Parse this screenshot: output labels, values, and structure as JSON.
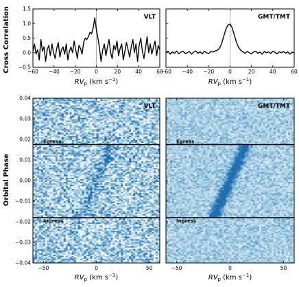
{
  "chart_data": [
    {
      "type": "line",
      "id": "cc_vlt",
      "label": "VLT",
      "ylabel": "Cross Correlation",
      "xlabel": "RV_p (km s^-1)",
      "xlim": [
        -60,
        60
      ],
      "ylim": [
        -0.5,
        1.5
      ],
      "xticks": [
        -60,
        -40,
        -20,
        0,
        20,
        40,
        60
      ],
      "yticks": [
        -0.5,
        0.0,
        0.5,
        1.0,
        1.5
      ],
      "ytick_labels": [
        "-0.5",
        "0.0",
        "0.5",
        "1.0",
        "1.5"
      ],
      "vline": 0,
      "x": [
        -60,
        -58.5,
        -57,
        -55.5,
        -54,
        -52.5,
        -51,
        -49.5,
        -48,
        -46.5,
        -45,
        -43.5,
        -42,
        -40.5,
        -39,
        -37.5,
        -36,
        -34.5,
        -33,
        -31.5,
        -30,
        -28.5,
        -27,
        -25.5,
        -24,
        -22.5,
        -21,
        -19.5,
        -18,
        -16.5,
        -15,
        -13.5,
        -12,
        -10.5,
        -9,
        -7.5,
        -6,
        -4.5,
        -3,
        -1.5,
        0,
        1.5,
        3,
        4.5,
        6,
        7.5,
        9,
        10.5,
        12,
        13.5,
        15,
        16.5,
        18,
        19.5,
        21,
        22.5,
        24,
        25.5,
        27,
        28.5,
        30,
        31.5,
        33,
        34.5,
        36,
        37.5,
        39,
        40.5,
        42,
        43.5,
        45,
        46.5,
        48,
        49.5,
        51,
        52.5,
        54,
        55.5,
        57,
        58.5,
        60
      ],
      "y": [
        0.05,
        0.3,
        -0.05,
        0.1,
        -0.25,
        0.45,
        0.05,
        0.2,
        -0.3,
        0.1,
        0.25,
        -0.1,
        0.3,
        0.0,
        -0.2,
        0.15,
        0.35,
        -0.15,
        0.1,
        0.2,
        -0.05,
        0.3,
        -0.25,
        0.05,
        0.2,
        0.0,
        0.4,
        0.1,
        -0.2,
        0.25,
        0.15,
        -0.05,
        0.35,
        0.5,
        0.45,
        0.55,
        0.7,
        0.65,
        0.85,
        1.2,
        0.8,
        0.5,
        0.15,
        -0.3,
        0.1,
        0.3,
        -0.1,
        0.2,
        0.45,
        0.0,
        -0.2,
        0.25,
        0.1,
        0.4,
        -0.1,
        0.15,
        0.3,
        -0.25,
        0.05,
        0.35,
        0.1,
        -0.15,
        0.2,
        0.45,
        0.0,
        0.3,
        -0.3,
        0.25,
        0.5,
        0.05,
        -0.2,
        0.15,
        0.55,
        0.0,
        0.3,
        -0.05,
        0.2,
        0.4,
        -0.1,
        0.25,
        0.1
      ]
    },
    {
      "type": "line",
      "id": "cc_gmt",
      "label": "GMT/TMT",
      "xlabel": "RV_p (km s^-1)",
      "xlim": [
        -60,
        60
      ],
      "ylim": [
        -0.5,
        1.5
      ],
      "xticks": [
        -60,
        -40,
        -20,
        0,
        20,
        40,
        60
      ],
      "vline": 0,
      "x": [
        -60,
        -58,
        -56,
        -54,
        -52,
        -50,
        -48,
        -46,
        -44,
        -42,
        -40,
        -38,
        -36,
        -34,
        -32,
        -30,
        -28,
        -26,
        -24,
        -22,
        -20,
        -18,
        -16,
        -14,
        -12,
        -10,
        -8,
        -6,
        -4,
        -2,
        0,
        2,
        4,
        6,
        8,
        10,
        12,
        14,
        16,
        18,
        20,
        22,
        24,
        26,
        28,
        30,
        32,
        34,
        36,
        38,
        40,
        42,
        44,
        46,
        48,
        50,
        52,
        54,
        56,
        58,
        60
      ],
      "y": [
        0.0,
        0.05,
        -0.05,
        0.03,
        -0.02,
        0.06,
        -0.04,
        0.02,
        0.05,
        -0.03,
        0.0,
        0.04,
        -0.05,
        0.02,
        0.06,
        -0.02,
        0.03,
        -0.04,
        0.05,
        0.0,
        -0.03,
        0.04,
        0.02,
        0.06,
        0.08,
        0.15,
        0.3,
        0.55,
        0.8,
        0.95,
        0.98,
        0.85,
        0.6,
        0.35,
        0.18,
        0.08,
        0.03,
        -0.02,
        0.04,
        0.0,
        -0.04,
        0.03,
        0.05,
        -0.02,
        0.02,
        -0.05,
        0.04,
        0.0,
        0.03,
        -0.03,
        0.05,
        0.01,
        -0.04,
        0.03,
        0.0,
        0.04,
        -0.02,
        0.03,
        -0.05,
        0.02,
        0.0
      ]
    },
    {
      "type": "heatmap",
      "id": "map_vlt",
      "label": "VLT",
      "ylabel": "Orbital Phase",
      "xlabel": "RV_p (km s^-1)",
      "xlim": [
        -60,
        60
      ],
      "ylim": [
        -0.04,
        0.04
      ],
      "xticks": [
        -50,
        0,
        50
      ],
      "yticks": [
        -0.04,
        -0.03,
        -0.02,
        -0.01,
        0.0,
        0.01,
        0.02,
        0.03,
        0.04
      ],
      "ytick_labels": [
        "-0.04",
        "-0.03",
        "-0.02",
        "-0.01",
        "0.00",
        "0.01",
        "0.02",
        "0.03",
        "0.04"
      ],
      "egress_phase": 0.0175,
      "ingress_phase": -0.018,
      "egress_label": "Egress",
      "ingress_label": "Ingress",
      "colormap": [
        "#ffffff",
        "#9ecae1",
        "#1f6fb0"
      ],
      "signal_strength": 0.35,
      "noise_strength": 0.9
    },
    {
      "type": "heatmap",
      "id": "map_gmt",
      "label": "GMT/TMT",
      "xlabel": "RV_p (km s^-1)",
      "xlim": [
        -60,
        60
      ],
      "ylim": [
        -0.04,
        0.04
      ],
      "xticks": [
        -50,
        0,
        50
      ],
      "egress_phase": 0.0175,
      "ingress_phase": -0.018,
      "egress_label": "Egress",
      "ingress_label": "Ingress",
      "colormap": [
        "#ffffff",
        "#9ecae1",
        "#1f6fb0"
      ],
      "signal_strength": 0.85,
      "noise_strength": 0.45
    }
  ]
}
